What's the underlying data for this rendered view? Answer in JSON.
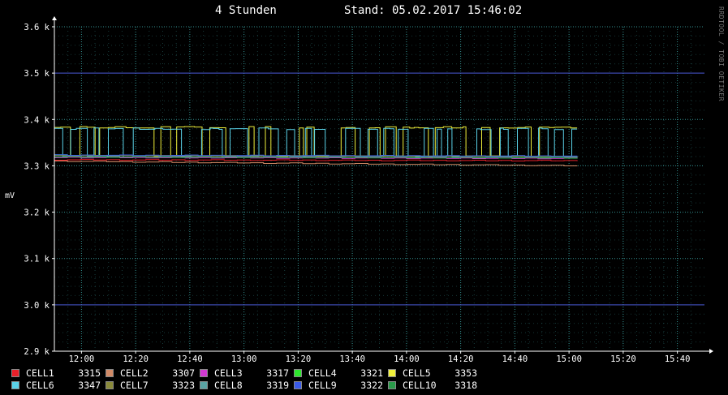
{
  "header": {
    "period": "4 Stunden",
    "stand_label": "Stand: 05.02.2017 15:46:02"
  },
  "watermark": "RRDTOOL / TOBI OETIKER",
  "colors": {
    "background": "#000000",
    "minor_grid": "#3aa0a0",
    "major_grid": "#4a5ad8",
    "axis": "#ffffff"
  },
  "chart_data": {
    "type": "line",
    "title": "",
    "xlabel": "",
    "ylabel": "mV",
    "x_range": [
      "11:50",
      "15:50"
    ],
    "ylim": [
      2900,
      3600
    ],
    "y_ticks": [
      2900,
      3000,
      3100,
      3200,
      3300,
      3400,
      3500,
      3600
    ],
    "y_tick_labels": [
      "2.9 k",
      "3.0 k",
      "3.1 k",
      "3.2 k",
      "3.3 k",
      "3.4 k",
      "3.5 k",
      "3.6 k"
    ],
    "x_ticks": [
      "12:00",
      "12:20",
      "12:40",
      "13:00",
      "13:20",
      "13:40",
      "14:00",
      "14:20",
      "14:40",
      "15:00",
      "15:20",
      "15:40"
    ],
    "grid": true,
    "legend_position": "bottom",
    "data_end": "15:03",
    "series": [
      {
        "name": "CELL1",
        "color": "#e8202a",
        "value": 3315,
        "start": 3313,
        "end": 3311,
        "base": 3312,
        "spikes": false
      },
      {
        "name": "CELL2",
        "color": "#d28a66",
        "value": 3307,
        "start": 3310,
        "end": 3300,
        "base": 3305,
        "spikes": false
      },
      {
        "name": "CELL3",
        "color": "#d23ad2",
        "value": 3317,
        "start": 3318,
        "end": 3316,
        "base": 3317,
        "spikes": false
      },
      {
        "name": "CELL4",
        "color": "#2ee82e",
        "value": 3321,
        "start": 3323,
        "end": 3319,
        "base": 3321,
        "spikes": false
      },
      {
        "name": "CELL5",
        "color": "#f0f03a",
        "value": 3353,
        "start": 3323,
        "end": 3321,
        "base": 3321,
        "spikes": true,
        "peak": 3385,
        "seed": 5
      },
      {
        "name": "CELL6",
        "color": "#5ad2e8",
        "value": 3347,
        "start": 3320,
        "end": 3320,
        "base": 3320,
        "spikes": true,
        "peak": 3382,
        "seed": 11
      },
      {
        "name": "CELL7",
        "color": "#8a8a3a",
        "value": 3323,
        "start": 3322,
        "end": 3320,
        "base": 3321,
        "spikes": false
      },
      {
        "name": "CELL8",
        "color": "#5aa2a2",
        "value": 3319,
        "start": 3320,
        "end": 3318,
        "base": 3319,
        "spikes": false
      },
      {
        "name": "CELL9",
        "color": "#3a5ae8",
        "value": 3322,
        "start": 3323,
        "end": 3321,
        "base": 3322,
        "spikes": false
      },
      {
        "name": "CELL10",
        "color": "#2a9a4a",
        "value": 3318,
        "start": 3319,
        "end": 3317,
        "base": 3318,
        "spikes": false
      }
    ]
  }
}
